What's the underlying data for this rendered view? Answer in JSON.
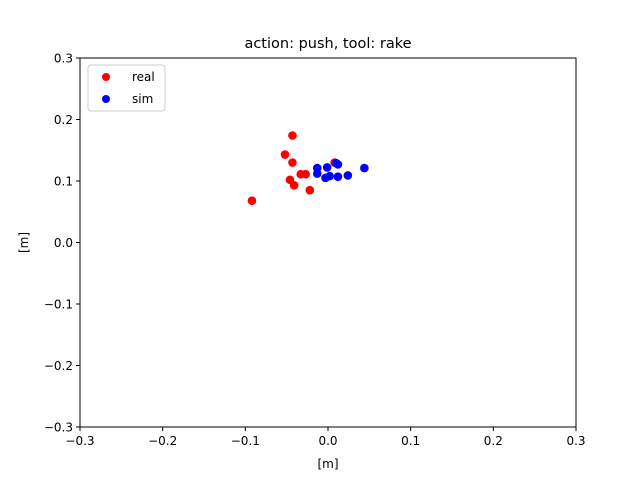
{
  "chart_data": {
    "type": "scatter",
    "title": "action: push, tool: rake",
    "xlabel": "[m]",
    "ylabel": "[m]",
    "xlim": [
      -0.3,
      0.3
    ],
    "ylim": [
      -0.3,
      0.3
    ],
    "xticks": [
      -0.3,
      -0.2,
      -0.1,
      0.0,
      0.1,
      0.2,
      0.3
    ],
    "yticks": [
      -0.3,
      -0.2,
      -0.1,
      0.0,
      0.1,
      0.2,
      0.3
    ],
    "xtick_labels": [
      "−0.3",
      "−0.2",
      "−0.1",
      "0.0",
      "0.1",
      "0.2",
      "0.3"
    ],
    "ytick_labels": [
      "−0.3",
      "−0.2",
      "−0.1",
      "0.0",
      "0.1",
      "0.2",
      "0.3"
    ],
    "grid": false,
    "legend_position": "top-left",
    "series": [
      {
        "name": "real",
        "color": "#ff0000",
        "points": [
          [
            -0.043,
            0.174
          ],
          [
            -0.052,
            0.143
          ],
          [
            -0.043,
            0.13
          ],
          [
            -0.033,
            0.111
          ],
          [
            -0.027,
            0.111
          ],
          [
            -0.046,
            0.102
          ],
          [
            -0.041,
            0.093
          ],
          [
            -0.022,
            0.085
          ],
          [
            -0.092,
            0.068
          ],
          [
            0.008,
            0.13
          ]
        ]
      },
      {
        "name": "sim",
        "color": "#0000ff",
        "points": [
          [
            -0.013,
            0.121
          ],
          [
            -0.001,
            0.122
          ],
          [
            0.012,
            0.127
          ],
          [
            0.044,
            0.121
          ],
          [
            -0.013,
            0.112
          ],
          [
            -0.003,
            0.105
          ],
          [
            0.002,
            0.108
          ],
          [
            0.012,
            0.107
          ],
          [
            0.024,
            0.109
          ],
          [
            0.01,
            0.129
          ]
        ]
      }
    ]
  }
}
